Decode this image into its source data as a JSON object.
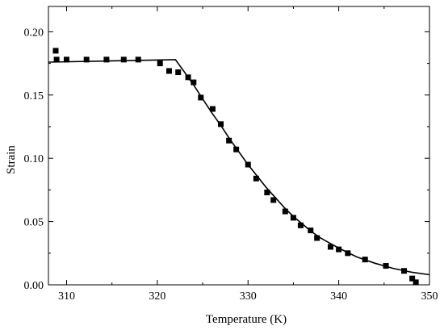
{
  "chart_data": {
    "type": "scatter",
    "xlabel": "Temperature (K)",
    "ylabel": "Strain",
    "xlim": [
      308,
      350
    ],
    "ylim": [
      0,
      0.22
    ],
    "xticks": [
      310,
      320,
      330,
      340,
      350
    ],
    "yticks": [
      0.0,
      0.05,
      0.1,
      0.15,
      0.2
    ],
    "xtick_labels": [
      "310",
      "320",
      "330",
      "340",
      "350"
    ],
    "ytick_labels": [
      "0.00",
      "0.05",
      "0.10",
      "0.15",
      "0.20"
    ],
    "grid": false,
    "series": [
      {
        "kind": "scatter",
        "marker": "square",
        "color": "#000000",
        "points": [
          [
            308.8,
            0.185
          ],
          [
            308.9,
            0.178
          ],
          [
            310.0,
            0.178
          ],
          [
            312.2,
            0.178
          ],
          [
            314.4,
            0.178
          ],
          [
            316.3,
            0.178
          ],
          [
            317.9,
            0.178
          ],
          [
            320.3,
            0.175
          ],
          [
            321.3,
            0.169
          ],
          [
            322.3,
            0.168
          ],
          [
            323.4,
            0.164
          ],
          [
            324.0,
            0.16
          ],
          [
            324.8,
            0.148
          ],
          [
            326.1,
            0.139
          ],
          [
            327.0,
            0.127
          ],
          [
            327.9,
            0.114
          ],
          [
            328.7,
            0.107
          ],
          [
            330.0,
            0.095
          ],
          [
            330.9,
            0.084
          ],
          [
            332.1,
            0.073
          ],
          [
            332.8,
            0.067
          ],
          [
            334.1,
            0.058
          ],
          [
            335.0,
            0.053
          ],
          [
            335.8,
            0.047
          ],
          [
            336.9,
            0.043
          ],
          [
            337.6,
            0.037
          ],
          [
            339.1,
            0.03
          ],
          [
            340.0,
            0.028
          ],
          [
            341.0,
            0.025
          ],
          [
            342.9,
            0.02
          ],
          [
            345.2,
            0.015
          ],
          [
            347.2,
            0.011
          ],
          [
            348.1,
            0.005
          ],
          [
            348.5,
            0.002
          ]
        ]
      },
      {
        "kind": "line",
        "color": "#000000",
        "points": [
          [
            308.0,
            0.176
          ],
          [
            322.0,
            0.178
          ],
          [
            323.0,
            0.168
          ],
          [
            324.0,
            0.158
          ],
          [
            325.0,
            0.147
          ],
          [
            326.0,
            0.136
          ],
          [
            327.0,
            0.126
          ],
          [
            328.0,
            0.115
          ],
          [
            329.0,
            0.105
          ],
          [
            330.0,
            0.095
          ],
          [
            331.0,
            0.086
          ],
          [
            332.0,
            0.077
          ],
          [
            333.0,
            0.069
          ],
          [
            334.0,
            0.061
          ],
          [
            335.0,
            0.054
          ],
          [
            336.0,
            0.048
          ],
          [
            337.0,
            0.042
          ],
          [
            338.0,
            0.037
          ],
          [
            339.0,
            0.033
          ],
          [
            340.0,
            0.029
          ],
          [
            342.0,
            0.022
          ],
          [
            344.0,
            0.017
          ],
          [
            346.0,
            0.013
          ],
          [
            348.0,
            0.01
          ],
          [
            350.0,
            0.008
          ]
        ]
      }
    ]
  }
}
